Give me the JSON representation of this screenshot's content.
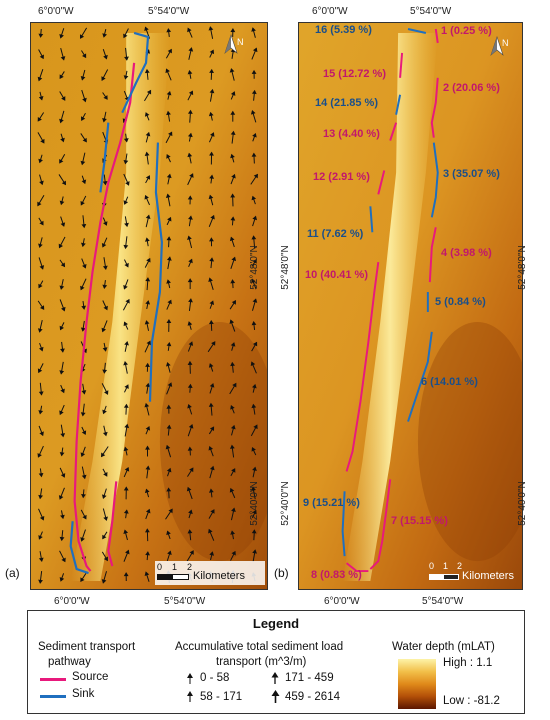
{
  "panel_a": {
    "label": "(a)",
    "top_coords": [
      "6°0'0\"W",
      "5°54'0\"W"
    ],
    "bottom_coords": [
      "6°0'0\"W",
      "5°54'0\"W"
    ],
    "right_coords": [
      "52°48'0\"N",
      "52°40'0\"N"
    ],
    "north": "N",
    "scale": {
      "ticks": [
        "0",
        "1",
        "2"
      ],
      "unit": "Kilometers"
    }
  },
  "panel_b": {
    "label": "(b)",
    "top_coords": [
      "6°0'0\"W",
      "5°54'0\"W"
    ],
    "bottom_coords": [
      "6°0'0\"W",
      "5°54'0\"W"
    ],
    "left_coords": [
      "52°48'0\"N",
      "52°40'0\"N"
    ],
    "right_coords": [
      "52°48'0\"N",
      "52°40'0\"N"
    ],
    "north": "N",
    "scale": {
      "ticks": [
        "0",
        "1",
        "2"
      ],
      "unit": "Kilometers"
    },
    "segments": [
      {
        "text": "16 (5.39 %)",
        "type": "sink"
      },
      {
        "text": "1 (0.25 %)",
        "type": "source"
      },
      {
        "text": "15 (12.72 %)",
        "type": "source"
      },
      {
        "text": "2 (20.06 %)",
        "type": "source"
      },
      {
        "text": "14 (21.85 %)",
        "type": "sink"
      },
      {
        "text": "13 (4.40 %)",
        "type": "source"
      },
      {
        "text": "3 (35.07 %)",
        "type": "sink"
      },
      {
        "text": "12 (2.91 %)",
        "type": "source"
      },
      {
        "text": "11 (7.62 %)",
        "type": "sink"
      },
      {
        "text": "4 (3.98 %)",
        "type": "source"
      },
      {
        "text": "10 (40.41 %)",
        "type": "source"
      },
      {
        "text": "5 (0.84 %)",
        "type": "sink"
      },
      {
        "text": "6 (14.01 %)",
        "type": "sink"
      },
      {
        "text": "9 (15.21 %)",
        "type": "sink"
      },
      {
        "text": "7 (15.15 %)",
        "type": "source"
      },
      {
        "text": "8 (0.83 %)",
        "type": "source"
      }
    ]
  },
  "legend": {
    "title": "Legend",
    "pathway": {
      "title_line1": "Sediment transport",
      "title_line2": "pathway",
      "source_label": "Source",
      "sink_label": "Sink",
      "source_color": "#e8197c",
      "sink_color": "#1f6fbf"
    },
    "transport": {
      "title_line1": "Accumulative total sediment load",
      "title_line2": "transport (m^3/m)",
      "classes": [
        "0 - 58",
        "171 - 459",
        "58 - 171",
        "459 - 2614"
      ]
    },
    "depth": {
      "title": "Water depth (mLAT)",
      "high": "High : 1.1",
      "low": "Low : -81.2"
    }
  }
}
